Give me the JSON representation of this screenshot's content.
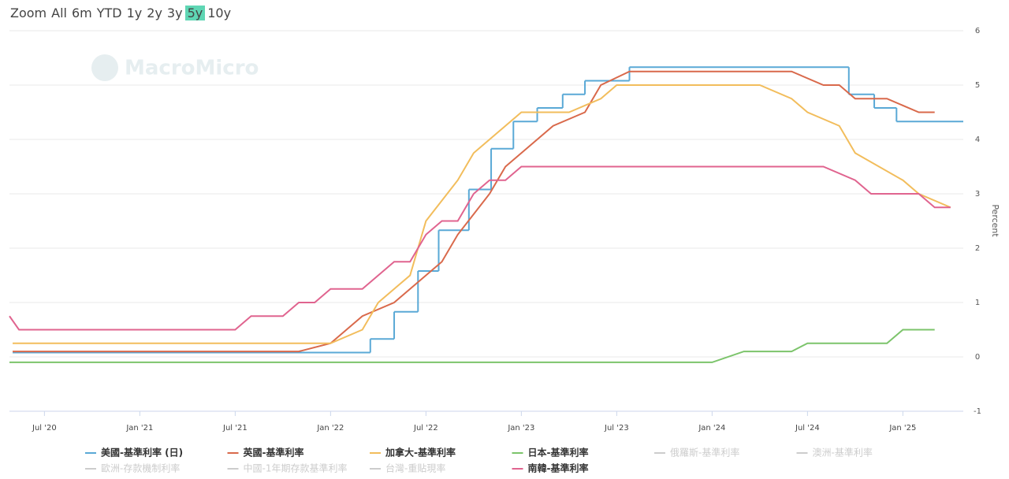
{
  "range_selector": {
    "label": "Zoom",
    "buttons": [
      "All",
      "6m",
      "YTD",
      "1y",
      "2y",
      "3y",
      "5y",
      "10y"
    ],
    "selected": 6
  },
  "chart_data": {
    "type": "line",
    "watermark": "MacroMicro",
    "y_label": "Percent",
    "xlim": [
      3.8,
      63.8
    ],
    "ylim": [
      -1,
      6
    ],
    "grid": true,
    "xticks": [
      {
        "value": 6,
        "label": "Jul '20"
      },
      {
        "value": 12,
        "label": "Jan '21"
      },
      {
        "value": 18,
        "label": "Jul '21"
      },
      {
        "value": 24,
        "label": "Jan '22"
      },
      {
        "value": 30,
        "label": "Jul '22"
      },
      {
        "value": 36,
        "label": "Jan '23"
      },
      {
        "value": 42,
        "label": "Jul '23"
      },
      {
        "value": 48,
        "label": "Jan '24"
      },
      {
        "value": 54,
        "label": "Jul '24"
      },
      {
        "value": 60,
        "label": "Jan '25"
      }
    ],
    "yticks": [
      -1,
      0,
      1,
      2,
      3,
      4,
      5,
      6
    ],
    "series": [
      {
        "name": "美國-基準利率 (日)",
        "color": "#5aa9d6",
        "step": true,
        "x": [
          4,
          26.5,
          28,
          29.5,
          30.8,
          32.7,
          34.1,
          35.5,
          37,
          38.6,
          40,
          42.8,
          56.6,
          58.2,
          59.6
        ],
        "values": [
          0.08,
          0.33,
          0.83,
          1.58,
          2.33,
          3.08,
          3.83,
          4.33,
          4.58,
          4.83,
          5.08,
          5.33,
          4.83,
          4.58,
          4.33
        ]
      },
      {
        "name": "英國-基準利率",
        "color": "#d9694b",
        "x": [
          4,
          22,
          24,
          25,
          26,
          28,
          30,
          31,
          32,
          34,
          35,
          38,
          40,
          41,
          42.8,
          53,
          55,
          56,
          57,
          59,
          61,
          62
        ],
        "values": [
          0.1,
          0.1,
          0.25,
          0.5,
          0.75,
          1.0,
          1.5,
          1.75,
          2.25,
          3.0,
          3.5,
          4.25,
          4.5,
          5.0,
          5.25,
          5.25,
          5.0,
          5.0,
          4.75,
          4.75,
          4.5,
          4.5
        ]
      },
      {
        "name": "加拿大-基準利率",
        "color": "#f2bd5c",
        "x": [
          4,
          24,
          26,
          27,
          29,
          30,
          32,
          33,
          36,
          39,
          41,
          42,
          51,
          53,
          54,
          56,
          57,
          60,
          61,
          63
        ],
        "values": [
          0.25,
          0.25,
          0.5,
          1.0,
          1.5,
          2.5,
          3.25,
          3.75,
          4.5,
          4.5,
          4.75,
          5.0,
          5.0,
          4.75,
          4.5,
          4.25,
          3.75,
          3.25,
          3.0,
          2.75
        ]
      },
      {
        "name": "日本-基準利率",
        "color": "#7cc46b",
        "x": [
          3.8,
          48,
          50,
          53,
          54,
          59,
          60,
          62
        ],
        "values": [
          -0.1,
          -0.1,
          0.1,
          0.1,
          0.25,
          0.25,
          0.5,
          0.5
        ]
      },
      {
        "name": "俄羅斯-基準利率",
        "color": "#cccccc",
        "visible": false
      },
      {
        "name": "澳洲-基準利率",
        "color": "#cccccc",
        "visible": false
      },
      {
        "name": "歐洲-存款機制利率",
        "color": "#cccccc",
        "visible": false
      },
      {
        "name": "中國-1年期存款基準利率",
        "color": "#cccccc",
        "visible": false
      },
      {
        "name": "台灣-重貼現率",
        "color": "#cccccc",
        "visible": false
      },
      {
        "name": "南韓-基準利率",
        "color": "#e0648f",
        "x": [
          3.8,
          4.4,
          18,
          19,
          21,
          22,
          23,
          24,
          26,
          28,
          29,
          30,
          31,
          32,
          33,
          34,
          35,
          36,
          55,
          57,
          58,
          61,
          62,
          63
        ],
        "values": [
          0.75,
          0.5,
          0.5,
          0.75,
          0.75,
          1.0,
          1.0,
          1.25,
          1.25,
          1.75,
          1.75,
          2.25,
          2.5,
          2.5,
          3.0,
          3.25,
          3.25,
          3.5,
          3.5,
          3.25,
          3.0,
          3.0,
          2.75,
          2.75
        ]
      }
    ]
  }
}
